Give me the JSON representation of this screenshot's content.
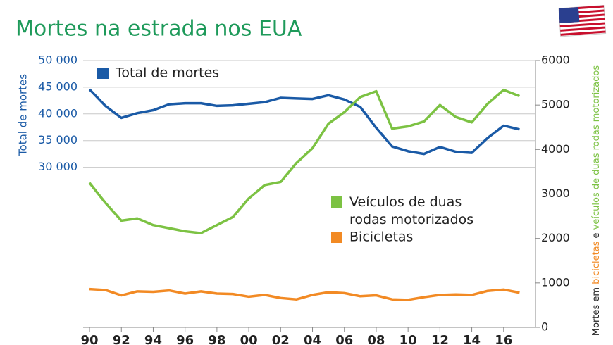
{
  "chart_data": {
    "type": "line",
    "title": "Mortes na estrada nos EUA",
    "y_label": "Total de mortes",
    "y2_label_parts": [
      "Mortes em ",
      "bicicletas",
      " e ",
      "veículos de duas rodas motorizados"
    ],
    "x": [
      1990,
      1991,
      1992,
      1993,
      1994,
      1995,
      1996,
      1997,
      1998,
      1999,
      2000,
      2001,
      2002,
      2003,
      2004,
      2005,
      2006,
      2007,
      2008,
      2009,
      2010,
      2011,
      2012,
      2013,
      2014,
      2015,
      2016,
      2017
    ],
    "xlim": [
      1989.6,
      2018
    ],
    "xticks": [
      {
        "value": 1990,
        "label": "90"
      },
      {
        "value": 1992,
        "label": "92"
      },
      {
        "value": 1994,
        "label": "94"
      },
      {
        "value": 1996,
        "label": "96"
      },
      {
        "value": 1998,
        "label": "98"
      },
      {
        "value": 2000,
        "label": "00"
      },
      {
        "value": 2002,
        "label": "02"
      },
      {
        "value": 2004,
        "label": "04"
      },
      {
        "value": 2006,
        "label": "06"
      },
      {
        "value": 2008,
        "label": "08"
      },
      {
        "value": 2010,
        "label": "10"
      },
      {
        "value": 2012,
        "label": "12"
      },
      {
        "value": 2014,
        "label": "14"
      },
      {
        "value": 2016,
        "label": "16"
      }
    ],
    "ylim": [
      0,
      50000
    ],
    "yticks": [
      {
        "value": 30000,
        "label": "30 000"
      },
      {
        "value": 35000,
        "label": "35 000"
      },
      {
        "value": 40000,
        "label": "40 000"
      },
      {
        "value": 45000,
        "label": "45 000"
      },
      {
        "value": 50000,
        "label": "50 000"
      }
    ],
    "y2lim": [
      0,
      6000
    ],
    "y2ticks": [
      0,
      1000,
      2000,
      3000,
      4000,
      5000,
      6000
    ],
    "grid": true,
    "series": [
      {
        "name": "Total de mortes",
        "color": "#1a5aa6",
        "axis": "y",
        "values": [
          44600,
          41500,
          39250,
          40150,
          40700,
          41800,
          42000,
          42000,
          41500,
          41600,
          41900,
          42200,
          43000,
          42900,
          42800,
          43500,
          42700,
          41300,
          37400,
          33900,
          33000,
          32500,
          33800,
          32900,
          32700,
          35500,
          37800,
          37100
        ]
      },
      {
        "name": "Veículos de duas rodas motorizados",
        "color": "#7cc243",
        "axis": "y2",
        "values": [
          3250,
          2800,
          2400,
          2450,
          2300,
          2230,
          2160,
          2120,
          2300,
          2480,
          2900,
          3200,
          3270,
          3700,
          4030,
          4580,
          4840,
          5180,
          5310,
          4470,
          4520,
          4630,
          5000,
          4730,
          4610,
          5030,
          5340,
          5200
        ]
      },
      {
        "name": "Bicicletas",
        "color": "#f28a24",
        "axis": "y2",
        "values": [
          860,
          840,
          720,
          810,
          800,
          830,
          760,
          810,
          760,
          750,
          690,
          730,
          660,
          630,
          730,
          790,
          770,
          700,
          720,
          630,
          620,
          680,
          730,
          740,
          730,
          820,
          850,
          780
        ]
      }
    ]
  }
}
